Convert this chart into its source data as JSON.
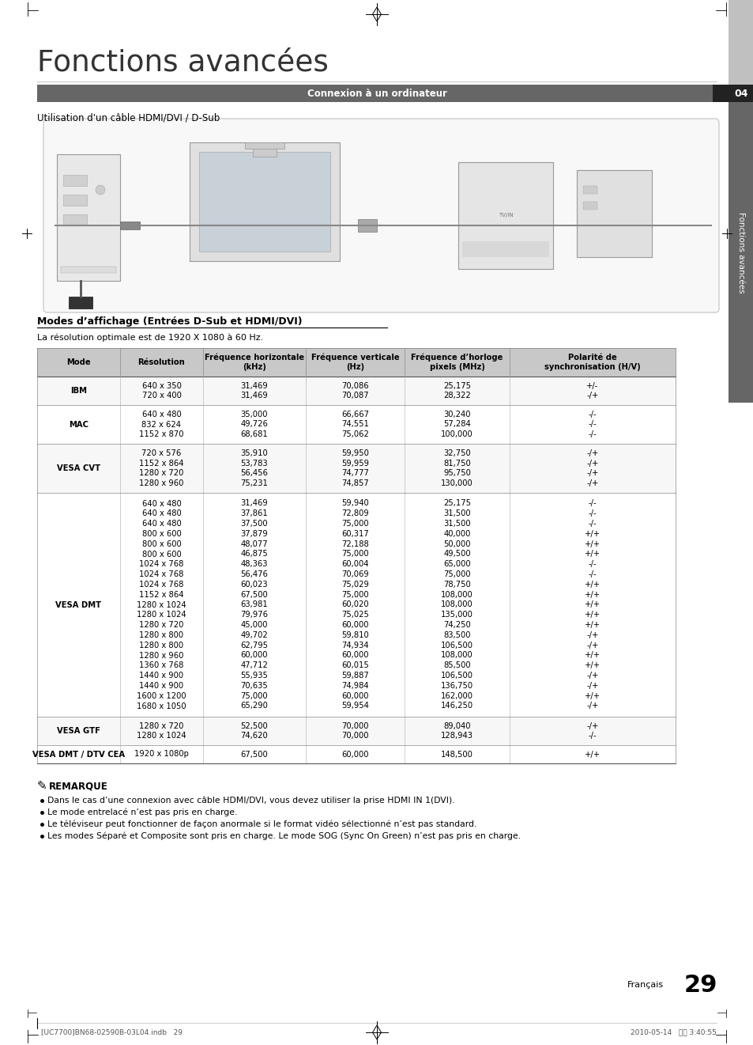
{
  "page_title": "Fonctions avancées",
  "section_bar_text": "Connexion à un ordinateur",
  "subtitle1": "Utilisation d'un câble HDMI/DVI / D-Sub",
  "subtitle2": "Modes d’affichage (Entrées D-Sub et HDMI/DVI)",
  "subtitle2_note": "La résolution optimale est de 1920 X 1080 à 60 Hz.",
  "table_headers": [
    "Mode",
    "Résolution",
    "Fréquence horizontale\n(kHz)",
    "Fréquence verticale\n(Hz)",
    "Fréquence d’horloge\npixels (MHz)",
    "Polarité de\nsynchronisation (H/V)"
  ],
  "table_data": [
    [
      "IBM",
      "640 x 350\n720 x 400",
      "31,469\n31,469",
      "70,086\n70,087",
      "25,175\n28,322",
      "+/-\n-/+"
    ],
    [
      "MAC",
      "640 x 480\n832 x 624\n1152 x 870",
      "35,000\n49,726\n68,681",
      "66,667\n74,551\n75,062",
      "30,240\n57,284\n100,000",
      "-/-\n-/-\n-/-"
    ],
    [
      "VESA CVT",
      "720 x 576\n1152 x 864\n1280 x 720\n1280 x 960",
      "35,910\n53,783\n56,456\n75,231",
      "59,950\n59,959\n74,777\n74,857",
      "32,750\n81,750\n95,750\n130,000",
      "-/+\n-/+\n-/+\n-/+"
    ],
    [
      "VESA DMT",
      "640 x 480\n640 x 480\n640 x 480\n800 x 600\n800 x 600\n800 x 600\n1024 x 768\n1024 x 768\n1024 x 768\n1152 x 864\n1280 x 1024\n1280 x 1024\n1280 x 720\n1280 x 800\n1280 x 800\n1280 x 960\n1360 x 768\n1440 x 900\n1440 x 900\n1600 x 1200\n1680 x 1050",
      "31,469\n37,861\n37,500\n37,879\n48,077\n46,875\n48,363\n56,476\n60,023\n67,500\n63,981\n79,976\n45,000\n49,702\n62,795\n60,000\n47,712\n55,935\n70,635\n75,000\n65,290",
      "59,940\n72,809\n75,000\n60,317\n72,188\n75,000\n60,004\n70,069\n75,029\n75,000\n60,020\n75,025\n60,000\n59,810\n74,934\n60,000\n60,015\n59,887\n74,984\n60,000\n59,954",
      "25,175\n31,500\n31,500\n40,000\n50,000\n49,500\n65,000\n75,000\n78,750\n108,000\n108,000\n135,000\n74,250\n83,500\n106,500\n108,000\n85,500\n106,500\n136,750\n162,000\n146,250",
      "-/-\n-/-\n-/-\n+/+\n+/+\n+/+\n-/-\n-/-\n+/+\n+/+\n+/+\n+/+\n+/+\n-/+\n-/+\n+/+\n+/+\n-/+\n-/+\n+/+\n-/+"
    ],
    [
      "VESA GTF",
      "1280 x 720\n1280 x 1024",
      "52,500\n74,620",
      "70,000\n70,000",
      "89,040\n128,943",
      "-/+\n-/-"
    ],
    [
      "VESA DMT / DTV CEA",
      "1920 x 1080p",
      "67,500",
      "60,000",
      "148,500",
      "+/+"
    ]
  ],
  "remarque_title": "REMARQUE",
  "remarque_bullets": [
    "Dans le cas d’une connexion avec câble HDMI/DVI, vous devez utiliser la prise HDMI IN 1(DVI).",
    "Le mode entrelacé n’est pas pris en charge.",
    "Le téléviseur peut fonctionner de façon anormale si le format vidéo sélectionné n’est pas standard.",
    "Les modes Séparé et Composite sont pris en charge. Le mode SOG (Sync On Green) n’est pas pris en charge."
  ],
  "remarque_bold_parts": [
    "HDMI IN 1(DVI)",
    "",
    "",
    ""
  ],
  "footer_left": "[UC7700]BN68-02590B-03L04.indb   29",
  "footer_right": "2010-05-14   오후 3:40:55",
  "page_number": "29",
  "language": "Français",
  "section_label": "Fonctions avancées",
  "section_number": "04",
  "bg_color": "#ffffff",
  "header_bar_color": "#666666",
  "header_bar_text_color": "#ffffff",
  "table_header_bg": "#c8c8c8",
  "table_border_color": "#aaaaaa",
  "side_tab_color": "#666666",
  "side_tab_dark": "#222222",
  "side_tab_light": "#999999"
}
